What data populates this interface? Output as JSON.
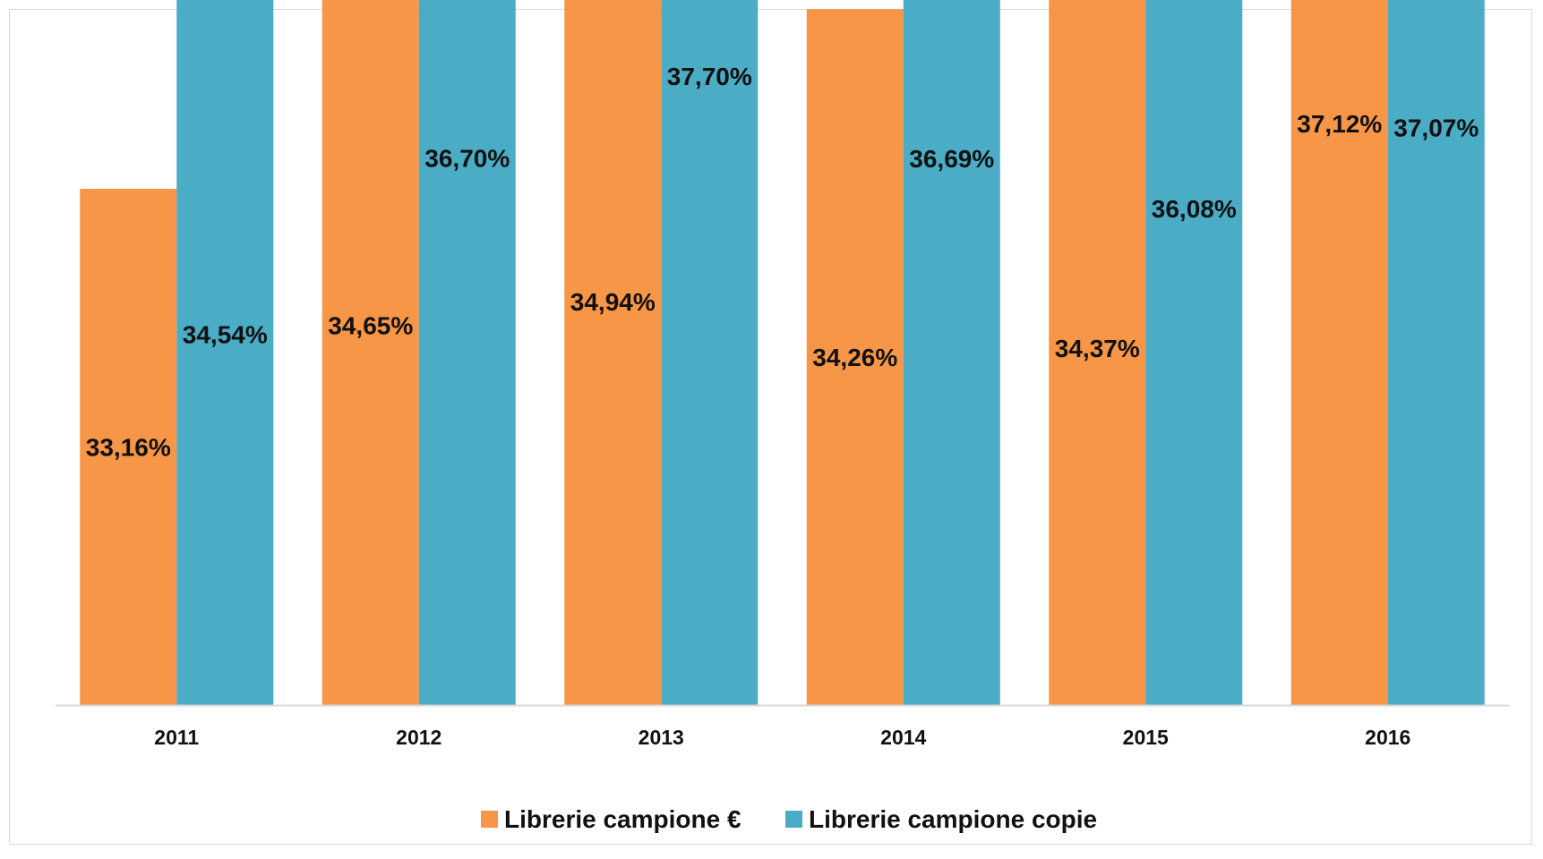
{
  "chart_data": {
    "type": "bar",
    "title": "",
    "xlabel": "",
    "ylabel": "",
    "categories": [
      "2011",
      "2012",
      "2013",
      "2014",
      "2015",
      "2016"
    ],
    "series": [
      {
        "name": "Librerie campione €",
        "color": "#F79646",
        "values": [
          33.16,
          34.65,
          34.94,
          34.26,
          34.37,
          37.12
        ],
        "labels": [
          "33,16%",
          "34,65%",
          "34,94%",
          "34,26%",
          "34,37%",
          "37,12%"
        ]
      },
      {
        "name": "Librerie campione copie",
        "color": "#4BACC6",
        "values": [
          34.54,
          36.7,
          37.7,
          36.69,
          36.08,
          37.07
        ],
        "labels": [
          "34,54%",
          "36,70%",
          "37,70%",
          "36,69%",
          "36,08%",
          "37,07%"
        ]
      }
    ],
    "ylim": [
      30,
      38.5
    ],
    "grid": false,
    "legend": "bottom"
  }
}
